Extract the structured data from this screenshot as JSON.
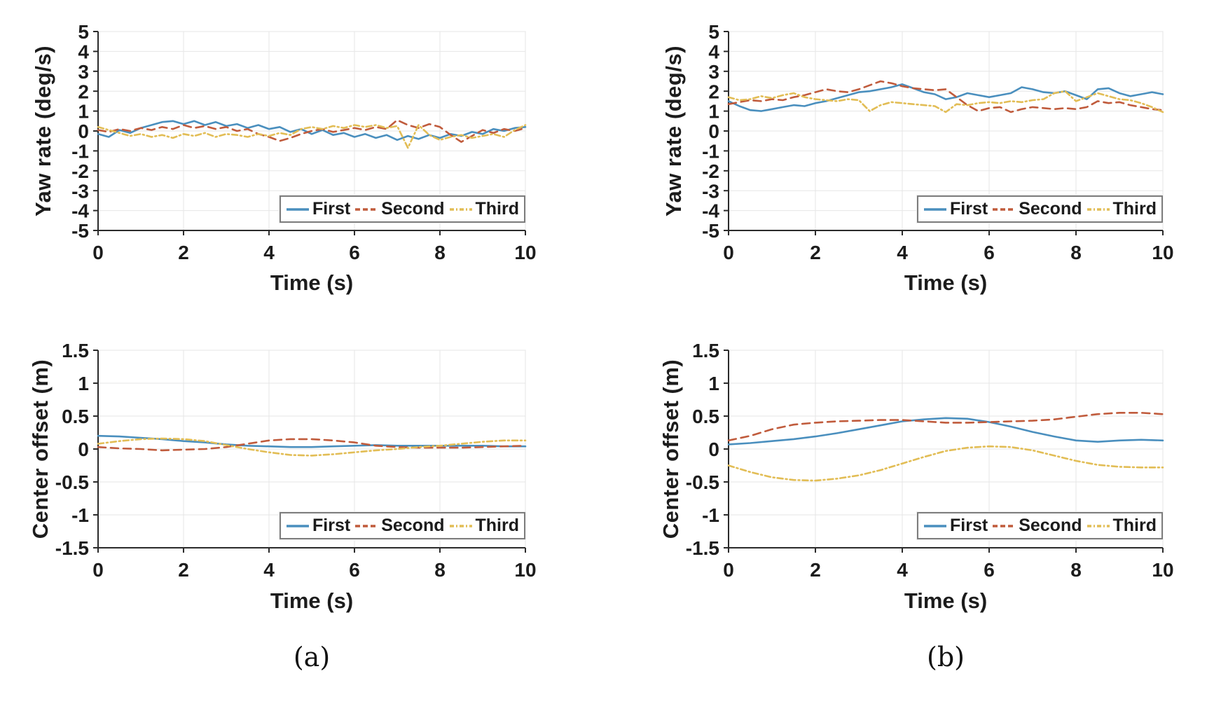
{
  "figure": {
    "background": "#ffffff"
  },
  "colors": {
    "first": "#4a8fbe",
    "second": "#c05b3c",
    "third": "#e2bd55",
    "axis": "#2b2b2b",
    "grid": "#e6e6e6",
    "box": "#dcdcdc",
    "text": "#1c1c1c"
  },
  "legend": {
    "position": "lower right inside axes",
    "items": [
      {
        "label": "First",
        "style": "solid"
      },
      {
        "label": "Second",
        "style": "dashed"
      },
      {
        "label": "Third",
        "style": "dashdot"
      }
    ]
  },
  "captions": {
    "a": "(a)",
    "b": "(b)"
  },
  "chart_data": [
    {
      "id": "yaw_a",
      "type": "line",
      "panel": "a",
      "title": "",
      "xlabel": "Time (s)",
      "ylabel": "Yaw rate (deg/s)",
      "xlim": [
        0,
        10
      ],
      "ylim": [
        -5,
        5
      ],
      "x_ticks": [
        0,
        2,
        4,
        6,
        8,
        10
      ],
      "y_ticks": [
        5,
        4,
        3,
        2,
        1,
        0,
        -1,
        -2,
        -3,
        -4,
        -5
      ],
      "grid": true,
      "x_start": 0,
      "x_step": 0.25,
      "series": [
        {
          "name": "First",
          "style": "solid",
          "values": [
            -0.15,
            -0.3,
            0.05,
            -0.1,
            0.15,
            0.3,
            0.45,
            0.5,
            0.35,
            0.5,
            0.3,
            0.45,
            0.25,
            0.35,
            0.15,
            0.3,
            0.1,
            0.2,
            -0.05,
            0.1,
            -0.15,
            0.05,
            -0.2,
            -0.1,
            -0.3,
            -0.15,
            -0.35,
            -0.2,
            -0.45,
            -0.25,
            -0.4,
            -0.2,
            -0.35,
            -0.15,
            -0.25,
            -0.05,
            -0.15,
            0.1,
            0,
            0.15,
            0.2
          ]
        },
        {
          "name": "Second",
          "style": "dashed",
          "values": [
            0.05,
            -0.05,
            0.1,
            0,
            0.15,
            0.05,
            0.2,
            0.1,
            0.3,
            0.15,
            0.25,
            0.1,
            0.2,
            0,
            0.1,
            -0.15,
            -0.3,
            -0.5,
            -0.35,
            -0.15,
            0,
            0.1,
            -0.05,
            0.05,
            0.15,
            0.05,
            0.2,
            0.1,
            0.55,
            0.3,
            0.15,
            0.35,
            0.2,
            -0.2,
            -0.55,
            -0.25,
            0.05,
            -0.1,
            0.1,
            0,
            0.15
          ]
        },
        {
          "name": "Third",
          "style": "dashdot",
          "values": [
            0.2,
            0.05,
            -0.1,
            -0.25,
            -0.15,
            -0.3,
            -0.2,
            -0.35,
            -0.15,
            -0.25,
            -0.1,
            -0.3,
            -0.15,
            -0.2,
            -0.3,
            -0.15,
            -0.25,
            -0.1,
            -0.2,
            0.1,
            0.2,
            0.1,
            0.25,
            0.15,
            0.3,
            0.2,
            0.3,
            0.15,
            0.25,
            -0.85,
            0.3,
            -0.2,
            -0.45,
            -0.3,
            -0.2,
            -0.35,
            -0.25,
            -0.15,
            -0.3,
            0.05,
            0.3
          ]
        }
      ]
    },
    {
      "id": "yaw_b",
      "type": "line",
      "panel": "b",
      "title": "",
      "xlabel": "Time (s)",
      "ylabel": "Yaw rate (deg/s)",
      "xlim": [
        0,
        10
      ],
      "ylim": [
        -5,
        5
      ],
      "x_ticks": [
        0,
        2,
        4,
        6,
        8,
        10
      ],
      "y_ticks": [
        5,
        4,
        3,
        2,
        1,
        0,
        -1,
        -2,
        -3,
        -4,
        -5
      ],
      "grid": true,
      "x_start": 0,
      "x_step": 0.25,
      "series": [
        {
          "name": "First",
          "style": "solid",
          "values": [
            1.5,
            1.25,
            1.05,
            1.0,
            1.1,
            1.2,
            1.3,
            1.25,
            1.4,
            1.5,
            1.65,
            1.8,
            1.95,
            2.0,
            2.1,
            2.2,
            2.35,
            2.15,
            1.95,
            1.85,
            1.6,
            1.7,
            1.9,
            1.8,
            1.7,
            1.8,
            1.9,
            2.2,
            2.1,
            1.95,
            1.9,
            2.0,
            1.8,
            1.6,
            2.1,
            2.15,
            1.9,
            1.75,
            1.85,
            1.95,
            1.85
          ]
        },
        {
          "name": "Second",
          "style": "dashed",
          "values": [
            1.35,
            1.45,
            1.55,
            1.5,
            1.6,
            1.55,
            1.7,
            1.8,
            1.95,
            2.1,
            2.0,
            1.95,
            2.1,
            2.3,
            2.5,
            2.4,
            2.25,
            2.15,
            2.1,
            2.05,
            2.1,
            1.7,
            1.3,
            1.0,
            1.15,
            1.2,
            0.95,
            1.1,
            1.2,
            1.15,
            1.1,
            1.15,
            1.1,
            1.2,
            1.5,
            1.4,
            1.45,
            1.3,
            1.2,
            1.1,
            1.05
          ]
        },
        {
          "name": "Third",
          "style": "dashdot",
          "values": [
            1.7,
            1.55,
            1.6,
            1.75,
            1.65,
            1.8,
            1.9,
            1.7,
            1.6,
            1.55,
            1.5,
            1.6,
            1.55,
            1.0,
            1.3,
            1.45,
            1.4,
            1.35,
            1.3,
            1.25,
            0.95,
            1.35,
            1.3,
            1.4,
            1.45,
            1.4,
            1.5,
            1.45,
            1.55,
            1.6,
            1.9,
            2.0,
            1.5,
            1.7,
            1.9,
            1.75,
            1.6,
            1.55,
            1.4,
            1.2,
            0.95
          ]
        }
      ]
    },
    {
      "id": "off_a",
      "type": "line",
      "panel": "a",
      "title": "",
      "xlabel": "Time (s)",
      "ylabel": "Center offset (m)",
      "xlim": [
        0,
        10
      ],
      "ylim": [
        -1.5,
        1.5
      ],
      "x_ticks": [
        0,
        2,
        4,
        6,
        8,
        10
      ],
      "y_ticks": [
        1.5,
        1,
        0.5,
        0,
        -0.5,
        -1,
        -1.5
      ],
      "grid": true,
      "x_start": 0,
      "x_step": 0.5,
      "series": [
        {
          "name": "First",
          "style": "solid",
          "values": [
            0.2,
            0.19,
            0.17,
            0.15,
            0.12,
            0.1,
            0.07,
            0.05,
            0.04,
            0.03,
            0.03,
            0.04,
            0.05,
            0.06,
            0.05,
            0.05,
            0.05,
            0.05,
            0.05,
            0.04,
            0.04
          ]
        },
        {
          "name": "Second",
          "style": "dashed",
          "values": [
            0.03,
            0.01,
            0.0,
            -0.02,
            -0.01,
            0.0,
            0.03,
            0.08,
            0.13,
            0.15,
            0.15,
            0.13,
            0.1,
            0.05,
            0.03,
            0.02,
            0.02,
            0.02,
            0.03,
            0.04,
            0.05
          ]
        },
        {
          "name": "Third",
          "style": "dashdot",
          "values": [
            0.08,
            0.12,
            0.15,
            0.16,
            0.15,
            0.12,
            0.06,
            0.0,
            -0.05,
            -0.09,
            -0.1,
            -0.08,
            -0.05,
            -0.02,
            0.0,
            0.03,
            0.05,
            0.08,
            0.11,
            0.13,
            0.13
          ]
        }
      ]
    },
    {
      "id": "off_b",
      "type": "line",
      "panel": "b",
      "title": "",
      "xlabel": "Time (s)",
      "ylabel": "Center offset (m)",
      "xlim": [
        0,
        10
      ],
      "ylim": [
        -1.5,
        1.5
      ],
      "x_ticks": [
        0,
        2,
        4,
        6,
        8,
        10
      ],
      "y_ticks": [
        1.5,
        1,
        0.5,
        0,
        -0.5,
        -1,
        -1.5
      ],
      "grid": true,
      "x_start": 0,
      "x_step": 0.5,
      "series": [
        {
          "name": "First",
          "style": "solid",
          "values": [
            0.07,
            0.09,
            0.12,
            0.15,
            0.19,
            0.24,
            0.3,
            0.36,
            0.42,
            0.45,
            0.47,
            0.46,
            0.41,
            0.34,
            0.26,
            0.19,
            0.13,
            0.11,
            0.13,
            0.14,
            0.13
          ]
        },
        {
          "name": "Second",
          "style": "dashed",
          "values": [
            0.13,
            0.2,
            0.3,
            0.37,
            0.4,
            0.42,
            0.43,
            0.44,
            0.44,
            0.42,
            0.4,
            0.4,
            0.41,
            0.42,
            0.43,
            0.45,
            0.49,
            0.53,
            0.55,
            0.55,
            0.53
          ]
        },
        {
          "name": "Third",
          "style": "dashdot",
          "values": [
            -0.25,
            -0.35,
            -0.43,
            -0.47,
            -0.48,
            -0.45,
            -0.4,
            -0.32,
            -0.22,
            -0.12,
            -0.03,
            0.02,
            0.04,
            0.03,
            -0.02,
            -0.1,
            -0.18,
            -0.24,
            -0.27,
            -0.28,
            -0.28
          ]
        }
      ]
    }
  ]
}
